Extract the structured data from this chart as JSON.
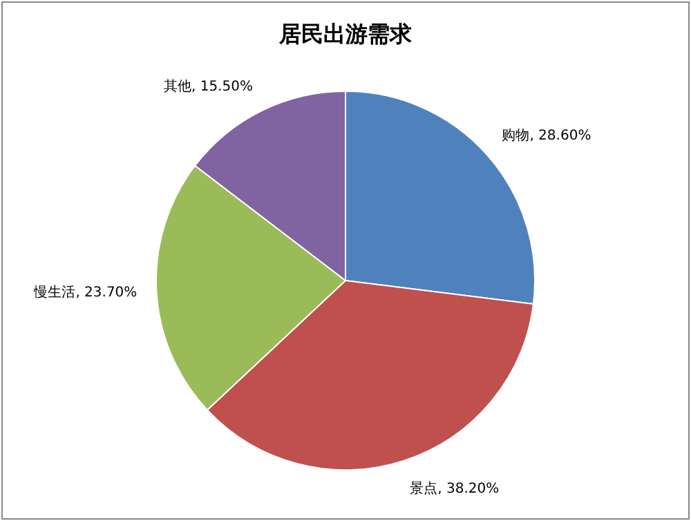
{
  "chart_data": {
    "type": "pie",
    "title": "居民出游需求",
    "categories": [
      "购物",
      "景点",
      "慢生活",
      "其他"
    ],
    "values": [
      28.6,
      38.2,
      23.7,
      15.5
    ],
    "colors": [
      "#4f81bd",
      "#c0504d",
      "#9bbb59",
      "#8064a2"
    ],
    "value_labels": [
      ", 28.60%",
      ", 38.20%",
      ", 23.70%",
      ", 15.50%"
    ]
  }
}
